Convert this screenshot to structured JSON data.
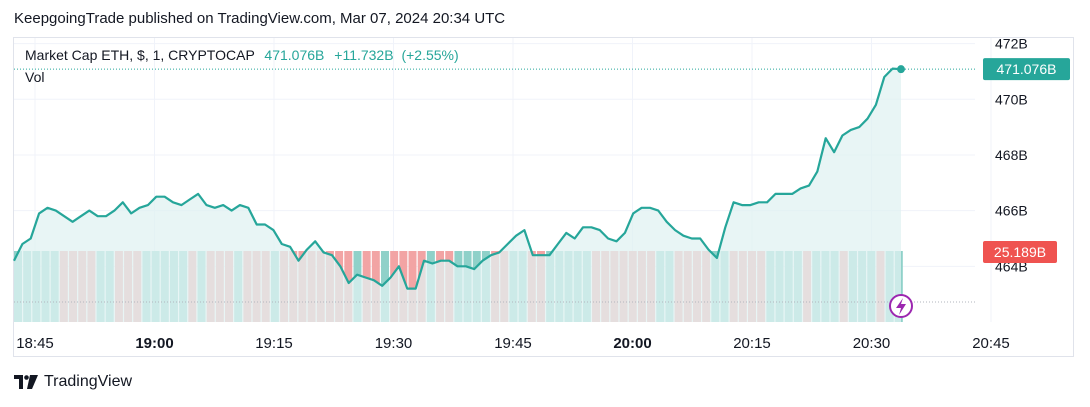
{
  "publisher_line": "KeepgoingTrade published on TradingView.com, Mar 07, 2024 20:34 UTC",
  "legend": {
    "symbol": "Market Cap ETH, $, 1, CRYPTOCAP",
    "price": "471.076B",
    "change": "+11.732B",
    "change_pct": "(+2.55%)"
  },
  "volume_label": "Vol",
  "footer": {
    "brand": "TradingView"
  },
  "colors": {
    "line": "#26a69a",
    "area": "#e0f2f1",
    "volume_up": "#8fd1c9",
    "volume_down": "#f2a4a4",
    "price_badge": "#26a69a",
    "volume_badge": "#ef5350",
    "lightning_icon": "#9c27b0"
  },
  "chart_data": {
    "type": "area",
    "y_axis": {
      "ticks": [
        "472B",
        "470B",
        "468B",
        "466B",
        "464B"
      ],
      "range": [
        462,
        472.2
      ]
    },
    "x_axis": {
      "ticks": [
        "18:45",
        "19:00",
        "19:15",
        "19:30",
        "19:45",
        "20:00",
        "20:15",
        "20:30",
        "20:45"
      ],
      "bold_ticks": [
        "19:00",
        "20:00"
      ]
    },
    "price_badge": "471.076B",
    "volume_badge": "25.189B",
    "grid": true,
    "series": [
      {
        "values": [
          464.2,
          464.8,
          465.0,
          465.9,
          466.1,
          466.0,
          465.8,
          465.6,
          465.8,
          466.0,
          465.8,
          465.8,
          466.0,
          466.3,
          465.9,
          466.1,
          466.2,
          466.5,
          466.5,
          466.3,
          466.2,
          466.4,
          466.6,
          466.2,
          466.1,
          466.2,
          466.0,
          466.2,
          466.1,
          465.5,
          465.5,
          465.3,
          464.8,
          464.7,
          464.2,
          464.6,
          464.9,
          464.5,
          464.4,
          464.0,
          463.4,
          463.7,
          463.6,
          463.5,
          463.3,
          463.6,
          464.0,
          463.2,
          463.2,
          464.2,
          464.1,
          464.2,
          464.2,
          464.0,
          464.0,
          463.9,
          464.2,
          464.4,
          464.5,
          464.8,
          465.1,
          465.3,
          464.4,
          464.4,
          464.4,
          464.8,
          465.2,
          465.0,
          465.4,
          465.4,
          465.3,
          465.0,
          464.9,
          465.2,
          465.9,
          466.1,
          466.1,
          466.0,
          465.6,
          465.3,
          465.1,
          465.0,
          465.0,
          464.6,
          464.3,
          465.4,
          466.3,
          466.2,
          466.2,
          466.3,
          466.3,
          466.6,
          466.6,
          466.6,
          466.8,
          466.9,
          467.4,
          468.6,
          468.1,
          468.7,
          468.9,
          469.0,
          469.3,
          469.8,
          470.8,
          471.1,
          471.08
        ]
      }
    ]
  }
}
